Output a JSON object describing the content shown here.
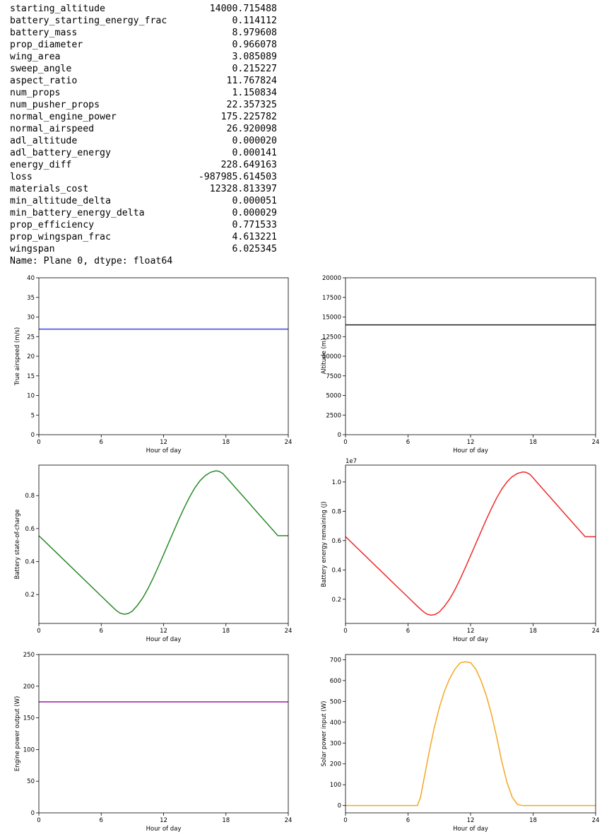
{
  "output_series": {
    "rows": [
      {
        "key": "starting_altitude",
        "value": "14000.715488"
      },
      {
        "key": "battery_starting_energy_frac",
        "value": "0.114112"
      },
      {
        "key": "battery_mass",
        "value": "8.979608"
      },
      {
        "key": "prop_diameter",
        "value": "0.966078"
      },
      {
        "key": "wing_area",
        "value": "3.085089"
      },
      {
        "key": "sweep_angle",
        "value": "0.215227"
      },
      {
        "key": "aspect_ratio",
        "value": "11.767824"
      },
      {
        "key": "num_props",
        "value": "1.150834"
      },
      {
        "key": "num_pusher_props",
        "value": "22.357325"
      },
      {
        "key": "normal_engine_power",
        "value": "175.225782"
      },
      {
        "key": "normal_airspeed",
        "value": "26.920098"
      },
      {
        "key": "adl_altitude",
        "value": "0.000020"
      },
      {
        "key": "adl_battery_energy",
        "value": "0.000141"
      },
      {
        "key": "energy_diff",
        "value": "228.649163"
      },
      {
        "key": "loss",
        "value": "-987985.614503"
      },
      {
        "key": "materials_cost",
        "value": "12328.813397"
      },
      {
        "key": "min_altitude_delta",
        "value": "0.000051"
      },
      {
        "key": "min_battery_energy_delta",
        "value": "0.000029"
      },
      {
        "key": "prop_efficiency",
        "value": "0.771533"
      },
      {
        "key": "prop_wingspan_frac",
        "value": "4.613221"
      },
      {
        "key": "wingspan",
        "value": "6.025345"
      }
    ],
    "footer": "Name: Plane 0, dtype: float64"
  },
  "chart_data": [
    {
      "type": "line",
      "xlabel": "Hour of day",
      "ylabel": "True airspeed (m/s)",
      "xlim": [
        0,
        24
      ],
      "ylim": [
        0,
        40
      ],
      "xticks": [
        0,
        6,
        12,
        18,
        24
      ],
      "xtick_labels": [
        "0",
        "6",
        "12",
        "18",
        "24"
      ],
      "yticks": [
        0,
        5,
        10,
        15,
        20,
        25,
        30,
        35,
        40
      ],
      "ytick_labels": [
        "0",
        "5",
        "10",
        "15",
        "20",
        "25",
        "30",
        "35",
        "40"
      ],
      "exponent_label": "",
      "series": [
        {
          "color": "#3b42ee",
          "x": [
            0,
            24
          ],
          "y": [
            26.92,
            26.92
          ]
        }
      ]
    },
    {
      "type": "line",
      "xlabel": "Hour of day",
      "ylabel": "Altitude (m)",
      "xlim": [
        0,
        24
      ],
      "ylim": [
        0,
        20000
      ],
      "xticks": [
        0,
        6,
        12,
        18,
        24
      ],
      "xtick_labels": [
        "0",
        "6",
        "12",
        "18",
        "24"
      ],
      "yticks": [
        0,
        2500,
        5000,
        7500,
        10000,
        12500,
        15000,
        17500,
        20000
      ],
      "ytick_labels": [
        "0",
        "2500",
        "5000",
        "7500",
        "10000",
        "12500",
        "15000",
        "17500",
        "20000"
      ],
      "exponent_label": "",
      "series": [
        {
          "color": "#222222",
          "x": [
            0,
            24
          ],
          "y": [
            14000.7,
            14000.7
          ]
        }
      ]
    },
    {
      "type": "line",
      "xlabel": "Hour of day",
      "ylabel": "Battery state-of-charge",
      "xlim": [
        0,
        24
      ],
      "ylim": [
        0.025,
        0.985
      ],
      "xticks": [
        0,
        6,
        12,
        18,
        24
      ],
      "xtick_labels": [
        "0",
        "6",
        "12",
        "18",
        "24"
      ],
      "yticks": [
        0.2,
        0.4,
        0.6,
        0.8
      ],
      "ytick_labels": [
        "0.2",
        "0.4",
        "0.6",
        "0.8"
      ],
      "exponent_label": "",
      "series": [
        {
          "color": "#2a8a2a",
          "x": [
            0,
            1,
            2,
            3,
            4,
            5,
            6,
            6.8,
            7.4,
            7.8,
            8.2,
            8.6,
            9.0,
            9.5,
            10,
            10.5,
            11,
            11.5,
            12,
            12.5,
            13,
            13.5,
            14,
            14.5,
            15,
            15.5,
            16,
            16.5,
            17,
            17.3,
            17.7,
            18,
            19,
            20,
            21,
            22,
            23,
            24
          ],
          "y": [
            0.557,
            0.496,
            0.435,
            0.374,
            0.313,
            0.252,
            0.191,
            0.142,
            0.106,
            0.088,
            0.081,
            0.085,
            0.1,
            0.136,
            0.18,
            0.236,
            0.3,
            0.37,
            0.442,
            0.515,
            0.588,
            0.66,
            0.728,
            0.791,
            0.846,
            0.89,
            0.921,
            0.941,
            0.95,
            0.948,
            0.935,
            0.914,
            0.842,
            0.771,
            0.699,
            0.628,
            0.557,
            0.557
          ]
        }
      ]
    },
    {
      "type": "line",
      "xlabel": "Hour of day",
      "ylabel": "Battery energy remaining (J)",
      "xlim": [
        0,
        24
      ],
      "ylim": [
        0.035,
        1.115
      ],
      "xticks": [
        0,
        6,
        12,
        18,
        24
      ],
      "xtick_labels": [
        "0",
        "6",
        "12",
        "18",
        "24"
      ],
      "yticks": [
        0.2,
        0.4,
        0.6,
        0.8,
        1.0
      ],
      "ytick_labels": [
        "0.2",
        "0.4",
        "0.6",
        "0.8",
        "1.0"
      ],
      "exponent_label": "1e7",
      "series": [
        {
          "color": "#ee2b2b",
          "x": [
            0,
            1,
            2,
            3,
            4,
            5,
            6,
            6.8,
            7.4,
            7.8,
            8.2,
            8.6,
            9.0,
            9.5,
            10,
            10.5,
            11,
            11.5,
            12,
            12.5,
            13,
            13.5,
            14,
            14.5,
            15,
            15.5,
            16,
            16.5,
            17,
            17.3,
            17.7,
            18,
            19,
            20,
            21,
            22,
            23,
            24
          ],
          "y": [
            0.627,
            0.558,
            0.489,
            0.42,
            0.351,
            0.282,
            0.214,
            0.159,
            0.119,
            0.099,
            0.091,
            0.096,
            0.113,
            0.153,
            0.202,
            0.265,
            0.337,
            0.416,
            0.497,
            0.579,
            0.661,
            0.742,
            0.819,
            0.89,
            0.952,
            1.001,
            1.036,
            1.058,
            1.068,
            1.066,
            1.052,
            1.028,
            0.947,
            0.867,
            0.786,
            0.706,
            0.626,
            0.626
          ]
        }
      ]
    },
    {
      "type": "line",
      "xlabel": "Hour of day",
      "ylabel": "Engine power output (W)",
      "xlim": [
        0,
        24
      ],
      "ylim": [
        0,
        250
      ],
      "xticks": [
        0,
        6,
        12,
        18,
        24
      ],
      "xtick_labels": [
        "0",
        "6",
        "12",
        "18",
        "24"
      ],
      "yticks": [
        0,
        50,
        100,
        150,
        200,
        250
      ],
      "ytick_labels": [
        "0",
        "50",
        "100",
        "150",
        "200",
        "250"
      ],
      "exponent_label": "",
      "series": [
        {
          "color": "#a019a6",
          "x": [
            0,
            24
          ],
          "y": [
            175.23,
            175.23
          ]
        }
      ]
    },
    {
      "type": "line",
      "xlabel": "Hour of day",
      "ylabel": "Solar power input (W)",
      "xlim": [
        0,
        24
      ],
      "ylim": [
        -35,
        725
      ],
      "xticks": [
        0,
        6,
        12,
        18,
        24
      ],
      "xtick_labels": [
        "0",
        "6",
        "12",
        "18",
        "24"
      ],
      "yticks": [
        0,
        100,
        200,
        300,
        400,
        500,
        600,
        700
      ],
      "ytick_labels": [
        "0",
        "100",
        "200",
        "300",
        "400",
        "500",
        "600",
        "700"
      ],
      "exponent_label": "",
      "series": [
        {
          "color": "#f5a623",
          "x": [
            0,
            6.9,
            7.2,
            7.5,
            8,
            8.5,
            9,
            9.5,
            10,
            10.5,
            11,
            11.5,
            12,
            12.5,
            13,
            13.5,
            14,
            14.5,
            15,
            15.5,
            16,
            16.5,
            17,
            17.5,
            17.9,
            18.2,
            24
          ],
          "y": [
            0,
            0,
            40,
            120,
            250,
            370,
            470,
            550,
            610,
            655,
            685,
            690,
            686,
            655,
            600,
            530,
            440,
            330,
            210,
            110,
            40,
            5,
            0,
            0,
            0,
            0,
            0
          ]
        }
      ]
    }
  ]
}
